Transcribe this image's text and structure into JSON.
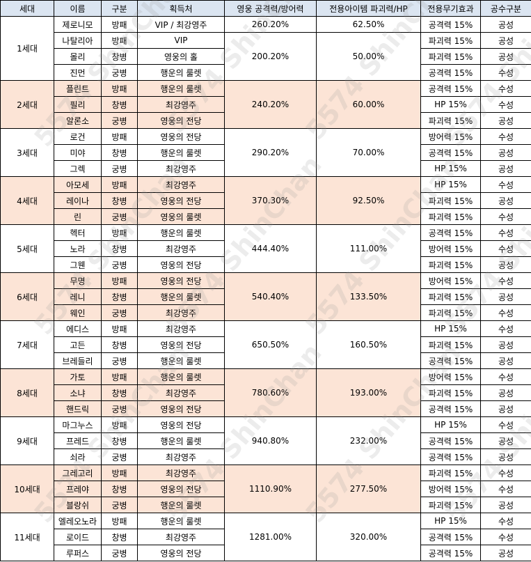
{
  "headers": [
    "세대",
    "이름",
    "구분",
    "획득처",
    "영웅 공격력/방어력",
    "전용아이템 파괴력/HP",
    "전용무기효과",
    "공수구분"
  ],
  "generations": [
    {
      "gen": "1세대",
      "rows": [
        {
          "name": "제로니모",
          "type": "방패",
          "source": "VIP / 최강영주",
          "item": "파괴력 15%",
          "atk": "공격력 15%",
          "side": "공성"
        },
        {
          "name": "나탈리아",
          "type": "방패",
          "source": "VIP",
          "item": "",
          "atk": "파괴력 15%",
          "side": "공성"
        },
        {
          "name": "몰리",
          "type": "창병",
          "source": "영웅의 홀",
          "item": "",
          "atk": "파괴력 15%",
          "side": "공성"
        },
        {
          "name": "진먼",
          "type": "궁병",
          "source": "행운의 룰렛",
          "item": "",
          "atk": "공격력 15%",
          "side": "수성"
        }
      ],
      "stats": [
        "260.20%",
        "62.50%"
      ],
      "stats2": [
        "200.20%",
        "50.00%"
      ]
    },
    {
      "gen": "2세대",
      "rows": [
        {
          "name": "플린트",
          "type": "방패",
          "source": "행운의 룰렛",
          "atk": "공격력 15%",
          "side": "수성"
        },
        {
          "name": "필리",
          "type": "창병",
          "source": "최강영주",
          "atk": "HP 15%",
          "side": "수성"
        },
        {
          "name": "알론소",
          "type": "궁병",
          "source": "영웅의 전당",
          "atk": "파괴력 15%",
          "side": "공성"
        }
      ],
      "stats": [
        "240.20%",
        "60.00%"
      ]
    },
    {
      "gen": "3세대",
      "rows": [
        {
          "name": "로건",
          "type": "방패",
          "source": "영웅의 전당",
          "atk": "방어력 15%",
          "side": "수성"
        },
        {
          "name": "미야",
          "type": "창병",
          "source": "행운의 룰렛",
          "atk": "공격력 15%",
          "side": "공성"
        },
        {
          "name": "그렉",
          "type": "궁병",
          "source": "최강영주",
          "atk": "HP 15%",
          "side": "공성"
        }
      ],
      "stats": [
        "290.20%",
        "70.00%"
      ]
    },
    {
      "gen": "4세대",
      "rows": [
        {
          "name": "아모세",
          "type": "방패",
          "source": "최강영주",
          "atk": "HP 15%",
          "side": "수성"
        },
        {
          "name": "레이나",
          "type": "창병",
          "source": "영웅의 전당",
          "atk": "파괴력 15%",
          "side": "공성"
        },
        {
          "name": "린",
          "type": "궁병",
          "source": "영웅의 룰렛",
          "atk": "파괴력 15%",
          "side": "수성"
        }
      ],
      "stats": [
        "370.30%",
        "92.50%"
      ]
    },
    {
      "gen": "5세대",
      "rows": [
        {
          "name": "헥터",
          "type": "방패",
          "source": "행운의 룰렛",
          "atk": "공격력 15%",
          "side": "수성"
        },
        {
          "name": "노라",
          "type": "창병",
          "source": "최강영주",
          "atk": "방어력 15%",
          "side": "수성"
        },
        {
          "name": "그웬",
          "type": "궁병",
          "source": "영웅의 전당",
          "atk": "파괴력 15%",
          "side": "공성"
        }
      ],
      "stats": [
        "444.40%",
        "111.00%"
      ]
    },
    {
      "gen": "6세대",
      "rows": [
        {
          "name": "무명",
          "type": "방패",
          "source": "영웅의 전당",
          "atk": "방어력 15%",
          "side": "수성"
        },
        {
          "name": "레니",
          "type": "창병",
          "source": "행운의 룰렛",
          "atk": "파괴력 15%",
          "side": "공성"
        },
        {
          "name": "웨인",
          "type": "궁병",
          "source": "최강영주",
          "atk": "파괴력 15%",
          "side": "수성"
        }
      ],
      "stats": [
        "540.40%",
        "133.50%"
      ]
    },
    {
      "gen": "7세대",
      "rows": [
        {
          "name": "에디스",
          "type": "방패",
          "source": "최강영주",
          "atk": "HP 15%",
          "side": "수성"
        },
        {
          "name": "고든",
          "type": "창병",
          "source": "영웅의 전당",
          "atk": "파괴력 15%",
          "side": "공성"
        },
        {
          "name": "브레들리",
          "type": "궁병",
          "source": "행운의 룰렛",
          "atk": "공격력 15%",
          "side": "공성"
        }
      ],
      "stats": [
        "650.50%",
        "160.50%"
      ]
    },
    {
      "gen": "8세대",
      "rows": [
        {
          "name": "가토",
          "type": "방패",
          "source": "행운의 룰렛",
          "atk": "방어력 15%",
          "side": "수성"
        },
        {
          "name": "소냐",
          "type": "창병",
          "source": "최강영주",
          "atk": "파괴력 15%",
          "side": "공성"
        },
        {
          "name": "핸드릭",
          "type": "궁병",
          "source": "영웅의 전당",
          "atk": "공격력 15%",
          "side": "공성"
        }
      ],
      "stats": [
        "780.60%",
        "193.00%"
      ]
    },
    {
      "gen": "9세대",
      "rows": [
        {
          "name": "마그누스",
          "type": "방패",
          "source": "영웅의 전당",
          "atk": "HP 15%",
          "side": "수성"
        },
        {
          "name": "프레드",
          "type": "창병",
          "source": "행운의 룰렛",
          "atk": "공격력 15%",
          "side": "공성"
        },
        {
          "name": "쇠라",
          "type": "궁병",
          "source": "최강영주",
          "atk": "공격력 15%",
          "side": "공성"
        }
      ],
      "stats": [
        "940.80%",
        "232.00%"
      ]
    },
    {
      "gen": "10세대",
      "rows": [
        {
          "name": "그레고리",
          "type": "방패",
          "source": "최강영주",
          "atk": "파괴력 15%",
          "side": "수성"
        },
        {
          "name": "프레야",
          "type": "창병",
          "source": "영웅의 전당",
          "atk": "방어력 15%",
          "side": "수성"
        },
        {
          "name": "블랑쉬",
          "type": "궁병",
          "source": "행운의 룰렛",
          "atk": "파괴력 15%",
          "side": "공성"
        }
      ],
      "stats": [
        "1110.90%",
        "277.50%"
      ]
    },
    {
      "gen": "11세대",
      "rows": [
        {
          "name": "엘레오노라",
          "type": "방패",
          "source": "행운의 룰렛",
          "atk": "HP 15%",
          "side": "수성"
        },
        {
          "name": "로이드",
          "type": "창병",
          "source": "최강영주",
          "atk": "공격력 15%",
          "side": "수성"
        },
        {
          "name": "루퍼스",
          "type": "궁병",
          "source": "영웅의 전당",
          "atk": "공격력 15%",
          "side": "공성"
        }
      ],
      "stats": [
        "1281.00%",
        "320.00%"
      ]
    }
  ],
  "watermark": "5574 ShinChan"
}
